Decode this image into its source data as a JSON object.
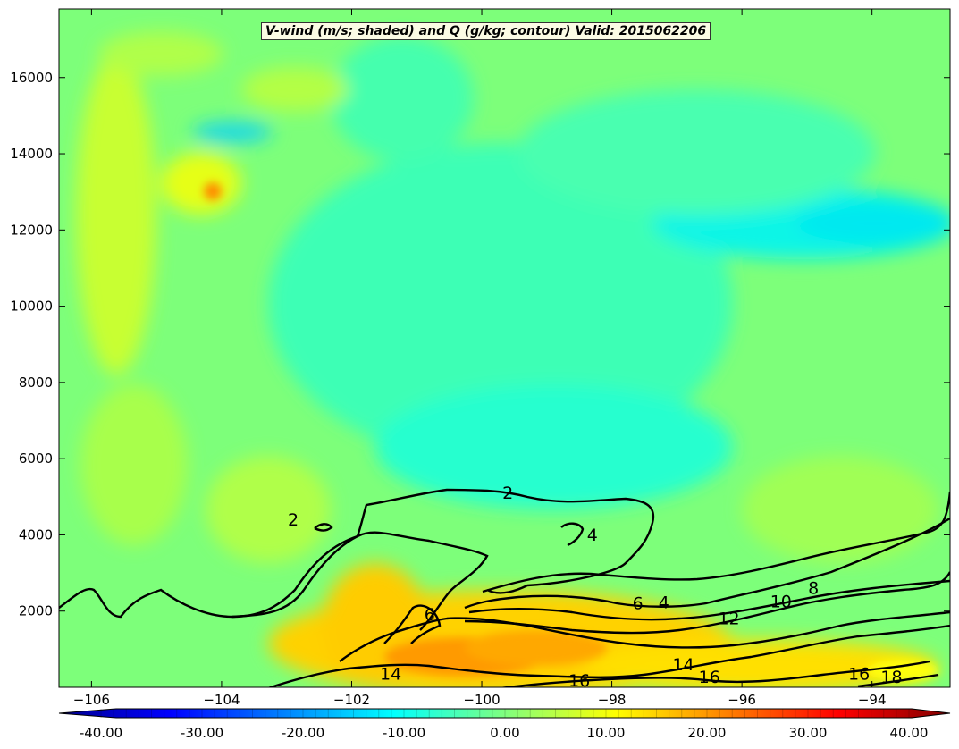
{
  "chart_data": {
    "type": "contour",
    "title": "V-wind (m/s; shaded) and Q (g/kg; contour) Valid: 2015062206",
    "xlim": [
      -106.5,
      -92.8
    ],
    "ylim": [
      0,
      17800
    ],
    "x_ticks": [
      -106,
      -104,
      -102,
      -100,
      -98,
      -96,
      -94
    ],
    "x_tick_labels": [
      "−106",
      "−104",
      "−102",
      "−100",
      "−98",
      "−96",
      "−94"
    ],
    "y_ticks": [
      2000,
      4000,
      6000,
      8000,
      10000,
      12000,
      14000,
      16000
    ],
    "y_tick_labels": [
      "2000",
      "4000",
      "6000",
      "8000",
      "10000",
      "12000",
      "14000",
      "16000"
    ],
    "colorbar": {
      "range": [
        -40,
        40
      ],
      "labels": [
        "-40.00",
        "-30.00",
        "-20.00",
        "-10.00",
        "0.00",
        "10.00",
        "20.00",
        "30.00",
        "40.00"
      ],
      "extend": "both",
      "colormap": "jet"
    },
    "contour_labels": [
      {
        "text": "2",
        "x": -99.6,
        "y": 4950
      },
      {
        "text": "2",
        "x": -102.9,
        "y": 4250
      },
      {
        "text": "4",
        "x": -98.3,
        "y": 3850
      },
      {
        "text": "6",
        "x": -100.8,
        "y": 1760
      },
      {
        "text": "6",
        "x": -97.6,
        "y": 2050
      },
      {
        "text": "4",
        "x": -97.2,
        "y": 2080
      },
      {
        "text": "8",
        "x": -94.9,
        "y": 2450
      },
      {
        "text": "10",
        "x": -95.4,
        "y": 2100
      },
      {
        "text": "12",
        "x": -96.2,
        "y": 1650
      },
      {
        "text": "14",
        "x": -101.4,
        "y": 200
      },
      {
        "text": "14",
        "x": -96.9,
        "y": 450
      },
      {
        "text": "16",
        "x": -98.5,
        "y": 20
      },
      {
        "text": "16",
        "x": -96.5,
        "y": 120
      },
      {
        "text": "16",
        "x": -94.2,
        "y": 200
      },
      {
        "text": "18",
        "x": -93.7,
        "y": 120
      }
    ]
  },
  "colors": {
    "background": "#7dff7a",
    "frame": "#000000",
    "contour": "#000000"
  }
}
